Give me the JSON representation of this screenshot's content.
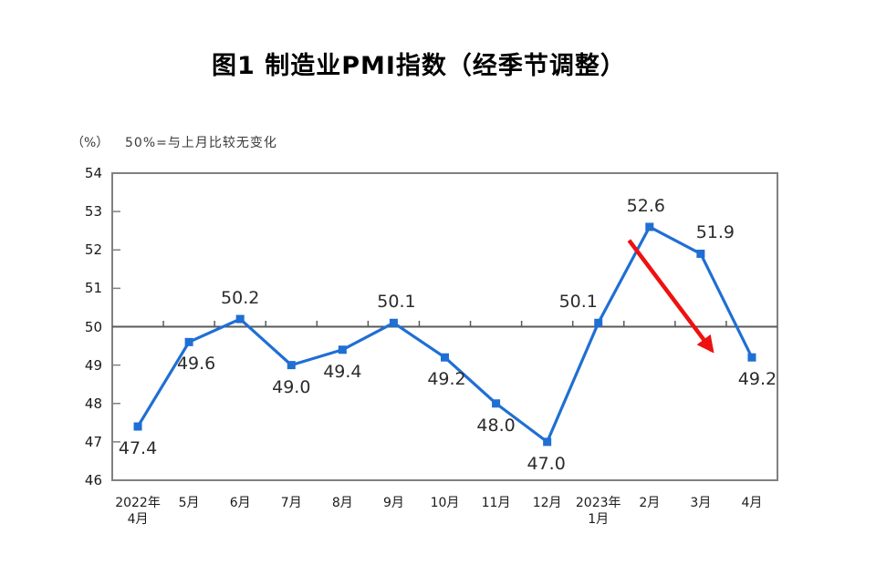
{
  "chart_data": {
    "type": "line",
    "title": "图1 制造业PMI指数（经季节调整）",
    "unit_label": "（%）",
    "note": "50%=与上月比较无变化",
    "categories": [
      "2022年\n4月",
      "5月",
      "6月",
      "7月",
      "8月",
      "9月",
      "10月",
      "11月",
      "12月",
      "2023年\n1月",
      "2月",
      "3月",
      "4月"
    ],
    "values": [
      47.4,
      49.6,
      50.2,
      49.0,
      49.4,
      50.1,
      49.2,
      48.0,
      47.0,
      50.1,
      52.6,
      51.9,
      49.2
    ],
    "label_positions": [
      "below",
      "below",
      "above",
      "below",
      "below",
      "above",
      "below",
      "below",
      "below",
      "above",
      "above",
      "above",
      "below"
    ],
    "label_dx": [
      0,
      8,
      0,
      0,
      0,
      3,
      2,
      0,
      -1,
      -22,
      -4,
      16,
      6
    ],
    "ylim": [
      46,
      54
    ],
    "yticks": [
      46,
      47,
      48,
      49,
      50,
      51,
      52,
      53,
      54
    ],
    "reference_line": 50,
    "grid": "off",
    "legend": "none",
    "line_color": "#1f6fd4",
    "marker_color": "#1f6fd4",
    "axis_color": "#808080",
    "reference_line_color": "#595959",
    "label_color": "#2b2b2b",
    "arrow_color": "#ef1010",
    "arrow": {
      "from": {
        "x": 10.1,
        "y": 52.25
      },
      "to": {
        "x": 11.72,
        "y": 49.38
      }
    }
  }
}
